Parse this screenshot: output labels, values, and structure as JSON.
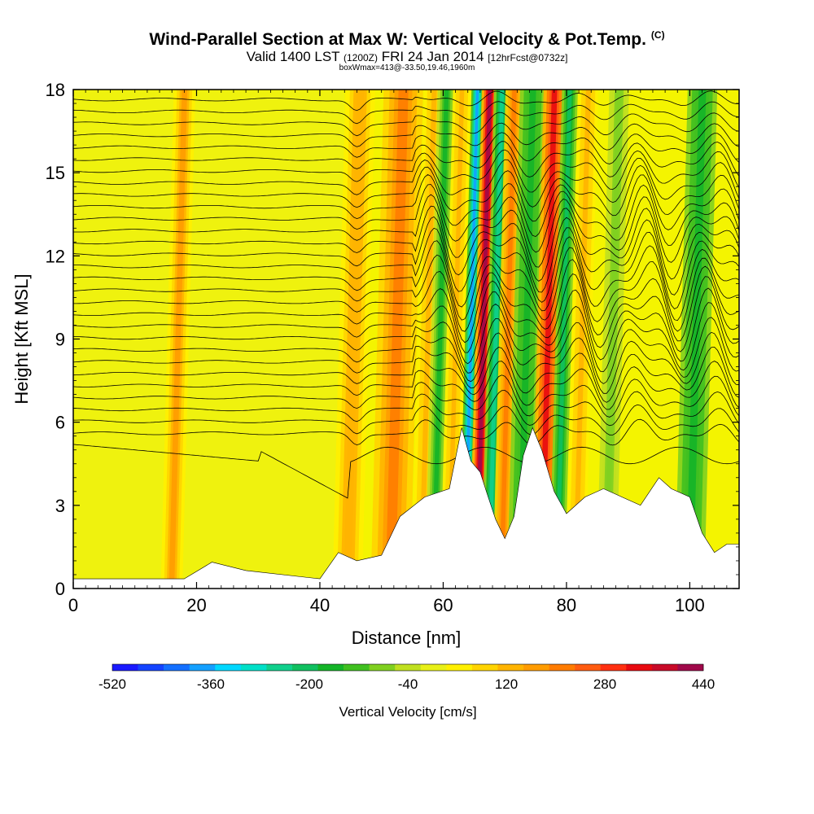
{
  "title": {
    "main": "Wind-Parallel Section at Max W: Vertical Velocity & Pot.Temp.",
    "copyright": "(C)",
    "valid_prefix": "Valid 1400 LST",
    "valid_utc": "(1200Z)",
    "valid_date": "FRI 24 Jan 2014",
    "forecast": "[12hrFcst@0732z]",
    "box_info": "boxWmax=413@-33.50,19.46,1960m"
  },
  "chart_data": {
    "type": "heatmap",
    "xlabel": "Distance [nm]",
    "ylabel": "Height [Kft MSL]",
    "xlim": [
      0,
      108
    ],
    "ylim": [
      0,
      18
    ],
    "xticks": [
      "0",
      "20",
      "40",
      "60",
      "80",
      "100"
    ],
    "xtick_values": [
      0,
      20,
      40,
      60,
      80,
      100
    ],
    "yticks": [
      "0",
      "3",
      "6",
      "9",
      "12",
      "15",
      "18"
    ],
    "ytick_values": [
      0,
      3,
      6,
      9,
      12,
      15,
      18
    ],
    "terrain_kft": [
      [
        0,
        0.35
      ],
      [
        18,
        0.35
      ],
      [
        22.5,
        0.95
      ],
      [
        28,
        0.65
      ],
      [
        40,
        0.35
      ],
      [
        43,
        1.3
      ],
      [
        46,
        1.0
      ],
      [
        50,
        1.2
      ],
      [
        53,
        2.6
      ],
      [
        57,
        3.3
      ],
      [
        61,
        3.6
      ],
      [
        63,
        5.8
      ],
      [
        64.5,
        4.6
      ],
      [
        66,
        4.2
      ],
      [
        67,
        3.5
      ],
      [
        68.5,
        2.5
      ],
      [
        70,
        1.8
      ],
      [
        71.5,
        2.6
      ],
      [
        73,
        4.8
      ],
      [
        74.5,
        5.8
      ],
      [
        76,
        5.0
      ],
      [
        78,
        3.5
      ],
      [
        80,
        2.7
      ],
      [
        83,
        3.3
      ],
      [
        86,
        3.6
      ],
      [
        89,
        3.3
      ],
      [
        92,
        3.0
      ],
      [
        95,
        4.0
      ],
      [
        97,
        3.6
      ],
      [
        100,
        3.3
      ],
      [
        102,
        2.0
      ],
      [
        104,
        1.3
      ],
      [
        106,
        1.6
      ],
      [
        108,
        1.6
      ]
    ],
    "velocity_bands_cms": [
      {
        "x": 17.0,
        "width": 2.2,
        "w": 150
      },
      {
        "x": 45.5,
        "width": 3.0,
        "w": 140
      },
      {
        "x": 52.5,
        "width": 4.0,
        "w": 230
      },
      {
        "x": 57.5,
        "width": 2.0,
        "w": 120
      },
      {
        "x": 59.5,
        "width": 1.8,
        "w": -160
      },
      {
        "x": 62.0,
        "width": 1.8,
        "w": 120
      },
      {
        "x": 64.5,
        "width": 1.2,
        "w": -380
      },
      {
        "x": 66.5,
        "width": 1.6,
        "w": 400
      },
      {
        "x": 68.5,
        "width": 1.6,
        "w": -260
      },
      {
        "x": 70.5,
        "width": 1.8,
        "w": 200
      },
      {
        "x": 73.5,
        "width": 2.6,
        "w": -180
      },
      {
        "x": 77.0,
        "width": 2.2,
        "w": 340
      },
      {
        "x": 79.5,
        "width": 1.6,
        "w": -200
      },
      {
        "x": 82.5,
        "width": 2.0,
        "w": 120
      },
      {
        "x": 87.5,
        "width": 2.0,
        "w": -80
      },
      {
        "x": 101.0,
        "width": 3.0,
        "w": -180
      }
    ],
    "theta_contour_levels": 29
  },
  "colorbar": {
    "title": "Vertical Velocity [cm/s]",
    "labels": [
      "-520",
      "-360",
      "-200",
      "-40",
      "120",
      "280",
      "440"
    ],
    "colors": [
      "#1a1aff",
      "#1444ff",
      "#1470ff",
      "#14a0ff",
      "#00d8ff",
      "#00e0c8",
      "#10d08c",
      "#10c060",
      "#14b428",
      "#40c020",
      "#80d020",
      "#c0e020",
      "#e8f018",
      "#fff000",
      "#ffd400",
      "#ffb400",
      "#ff9c00",
      "#ff7c00",
      "#ff5c10",
      "#ff3010",
      "#e80a10",
      "#c80a28",
      "#a0084a"
    ]
  }
}
